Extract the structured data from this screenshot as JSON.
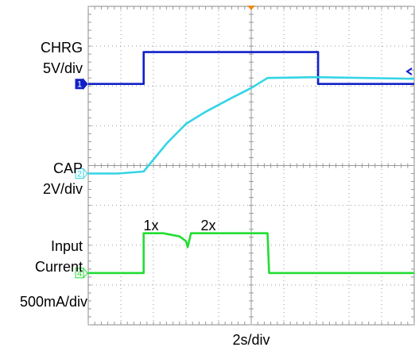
{
  "chart_data": {
    "type": "line",
    "xlabel": "2s/div",
    "x_div": 10,
    "y_div": 8,
    "series": [
      {
        "name": "CHRG",
        "scale": "5V/div",
        "channel_marker": "1",
        "color": "#1020c8",
        "points": [
          [
            0,
            6.05
          ],
          [
            1.7,
            6.05
          ],
          [
            1.7,
            6.85
          ],
          [
            7.05,
            6.85
          ],
          [
            7.05,
            6.05
          ],
          [
            10,
            6.05
          ]
        ]
      },
      {
        "name": "CAP",
        "scale": "2V/div",
        "channel_marker": "2",
        "color": "#33d4e6",
        "points": [
          [
            0,
            3.8
          ],
          [
            0.9,
            3.8
          ],
          [
            1.7,
            3.85
          ],
          [
            2.4,
            4.55
          ],
          [
            3.0,
            5.05
          ],
          [
            3.6,
            5.35
          ],
          [
            4.4,
            5.7
          ],
          [
            5.0,
            5.95
          ],
          [
            5.5,
            6.2
          ],
          [
            7.0,
            6.22
          ],
          [
            10,
            6.18
          ]
        ]
      },
      {
        "name": "Input Current",
        "scale": "500mA/div",
        "channel_marker": "4",
        "color": "#22dd33",
        "points": [
          [
            0,
            1.3
          ],
          [
            1.7,
            1.3
          ],
          [
            1.7,
            2.3
          ],
          [
            2.3,
            2.3
          ],
          [
            2.8,
            2.22
          ],
          [
            3.0,
            2.1
          ],
          [
            3.05,
            1.95
          ],
          [
            3.15,
            2.3
          ],
          [
            5.5,
            2.3
          ],
          [
            5.55,
            1.3
          ],
          [
            10,
            1.3
          ]
        ]
      }
    ],
    "annotations": [
      "1x",
      "2x"
    ]
  }
}
